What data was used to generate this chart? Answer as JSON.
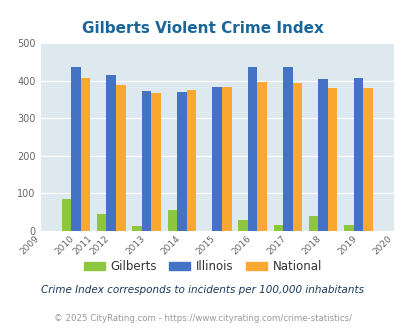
{
  "title": "Gilberts Violent Crime Index",
  "title_color": "#1a6699",
  "all_years": [
    2009,
    2010,
    2011,
    2012,
    2013,
    2014,
    2015,
    2016,
    2017,
    2018,
    2019,
    2020
  ],
  "bar_years": [
    2010,
    2012,
    2013,
    2014,
    2015,
    2016,
    2017,
    2018,
    2019
  ],
  "gilberts": [
    85,
    46,
    14,
    57,
    0,
    30,
    15,
    40,
    17
  ],
  "illinois": [
    435,
    415,
    372,
    369,
    383,
    437,
    437,
    404,
    408
  ],
  "national": [
    406,
    387,
    366,
    376,
    383,
    397,
    394,
    380,
    379
  ],
  "gilberts_color": "#8dc63f",
  "illinois_color": "#4472c4",
  "national_color": "#faa832",
  "background_color": "#dde8ef",
  "ylim": [
    0,
    500
  ],
  "yticks": [
    0,
    100,
    200,
    300,
    400,
    500
  ],
  "legend_labels": [
    "Gilberts",
    "Illinois",
    "National"
  ],
  "note": "Crime Index corresponds to incidents per 100,000 inhabitants",
  "note_color": "#1a3a5c",
  "copyright": "© 2025 CityRating.com - https://www.cityrating.com/crime-statistics/",
  "copyright_color": "#999999"
}
